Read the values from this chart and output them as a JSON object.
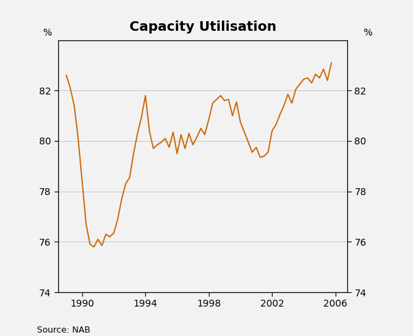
{
  "title": "Capacity Utilisation",
  "line_color": "#CC6600",
  "background_color": "#f2f2f2",
  "plot_bg_color": "#f2f2f2",
  "ylabel_left": "%",
  "ylabel_right": "%",
  "source": "Source: NAB",
  "ylim": [
    74,
    84
  ],
  "yticks": [
    74,
    76,
    78,
    80,
    82
  ],
  "xlim_start": 1988.5,
  "xlim_end": 2006.75,
  "xticks": [
    1990,
    1994,
    1998,
    2002,
    2006
  ],
  "data": [
    [
      1989.0,
      82.6
    ],
    [
      1989.25,
      82.1
    ],
    [
      1989.5,
      81.4
    ],
    [
      1989.75,
      80.1
    ],
    [
      1990.0,
      78.4
    ],
    [
      1990.25,
      76.7
    ],
    [
      1990.5,
      75.9
    ],
    [
      1990.75,
      75.8
    ],
    [
      1991.0,
      76.1
    ],
    [
      1991.25,
      75.85
    ],
    [
      1991.5,
      76.3
    ],
    [
      1991.75,
      76.2
    ],
    [
      1992.0,
      76.35
    ],
    [
      1992.25,
      76.9
    ],
    [
      1992.5,
      77.7
    ],
    [
      1992.75,
      78.3
    ],
    [
      1993.0,
      78.55
    ],
    [
      1993.25,
      79.5
    ],
    [
      1993.5,
      80.3
    ],
    [
      1993.75,
      80.95
    ],
    [
      1994.0,
      81.8
    ],
    [
      1994.25,
      80.4
    ],
    [
      1994.5,
      79.7
    ],
    [
      1994.75,
      79.85
    ],
    [
      1995.0,
      79.95
    ],
    [
      1995.25,
      80.1
    ],
    [
      1995.5,
      79.75
    ],
    [
      1995.75,
      80.35
    ],
    [
      1996.0,
      79.5
    ],
    [
      1996.25,
      80.25
    ],
    [
      1996.5,
      79.7
    ],
    [
      1996.75,
      80.3
    ],
    [
      1997.0,
      79.85
    ],
    [
      1997.25,
      80.15
    ],
    [
      1997.5,
      80.5
    ],
    [
      1997.75,
      80.25
    ],
    [
      1998.0,
      80.85
    ],
    [
      1998.25,
      81.5
    ],
    [
      1998.5,
      81.65
    ],
    [
      1998.75,
      81.8
    ],
    [
      1999.0,
      81.6
    ],
    [
      1999.25,
      81.65
    ],
    [
      1999.5,
      81.0
    ],
    [
      1999.75,
      81.55
    ],
    [
      2000.0,
      80.75
    ],
    [
      2000.25,
      80.35
    ],
    [
      2000.5,
      79.95
    ],
    [
      2000.75,
      79.55
    ],
    [
      2001.0,
      79.75
    ],
    [
      2001.25,
      79.35
    ],
    [
      2001.5,
      79.4
    ],
    [
      2001.75,
      79.55
    ],
    [
      2002.0,
      80.4
    ],
    [
      2002.25,
      80.65
    ],
    [
      2002.5,
      81.05
    ],
    [
      2002.75,
      81.4
    ],
    [
      2003.0,
      81.85
    ],
    [
      2003.25,
      81.5
    ],
    [
      2003.5,
      82.05
    ],
    [
      2003.75,
      82.25
    ],
    [
      2004.0,
      82.45
    ],
    [
      2004.25,
      82.5
    ],
    [
      2004.5,
      82.3
    ],
    [
      2004.75,
      82.65
    ],
    [
      2005.0,
      82.5
    ],
    [
      2005.25,
      82.85
    ],
    [
      2005.5,
      82.4
    ],
    [
      2005.75,
      83.1
    ]
  ]
}
